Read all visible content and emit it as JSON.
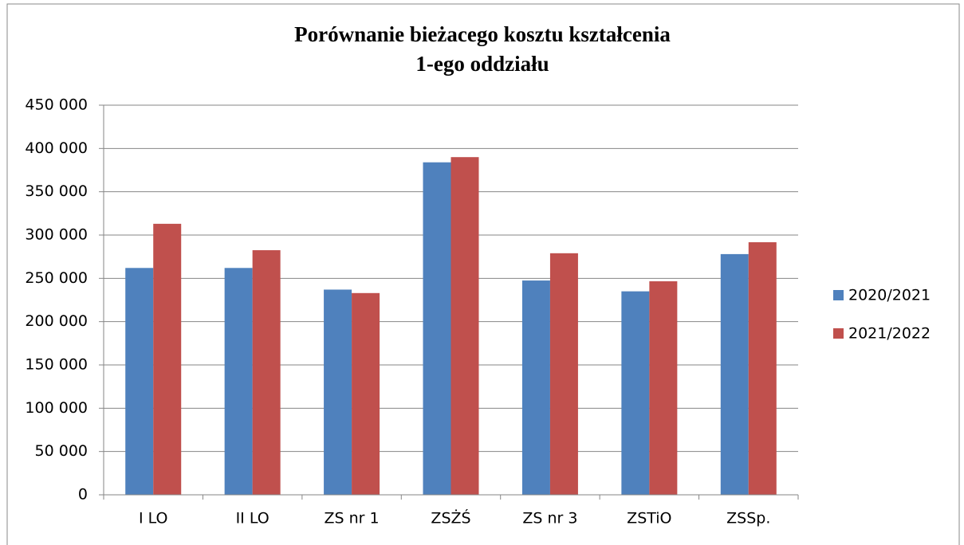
{
  "chart_data": {
    "type": "bar",
    "title": [
      "Porównanie bieżacego kosztu kształcenia",
      "1-ego oddziału"
    ],
    "categories": [
      "I LO",
      "II LO",
      "ZS nr 1",
      "ZSŻŚ",
      "ZS nr 3",
      "ZSTiO",
      "ZSSp."
    ],
    "series": [
      {
        "name": "2020/2021",
        "color": "#4f81bd",
        "values": [
          262000,
          262000,
          237000,
          384000,
          247500,
          235000,
          278000
        ]
      },
      {
        "name": "2021/2022",
        "color": "#c0504d",
        "values": [
          313000,
          282500,
          233000,
          390000,
          279000,
          246600,
          291700
        ]
      }
    ],
    "ylim": [
      0,
      450000
    ],
    "yticks": [
      0,
      {
        "value": 50000,
        "label": "50 000"
      },
      {
        "value": 100000,
        "label": "100 000"
      },
      {
        "value": 150000,
        "label": "150 000"
      },
      {
        "value": 200000,
        "label": "200 000"
      },
      {
        "value": 250000,
        "label": "250 000"
      },
      {
        "value": 300000,
        "label": "300 000"
      },
      {
        "value": 350000,
        "label": "350 000"
      },
      {
        "value": 400000,
        "label": "400 000"
      },
      {
        "value": 450000,
        "label": "450 000"
      }
    ],
    "grid": true,
    "legend": "right"
  }
}
